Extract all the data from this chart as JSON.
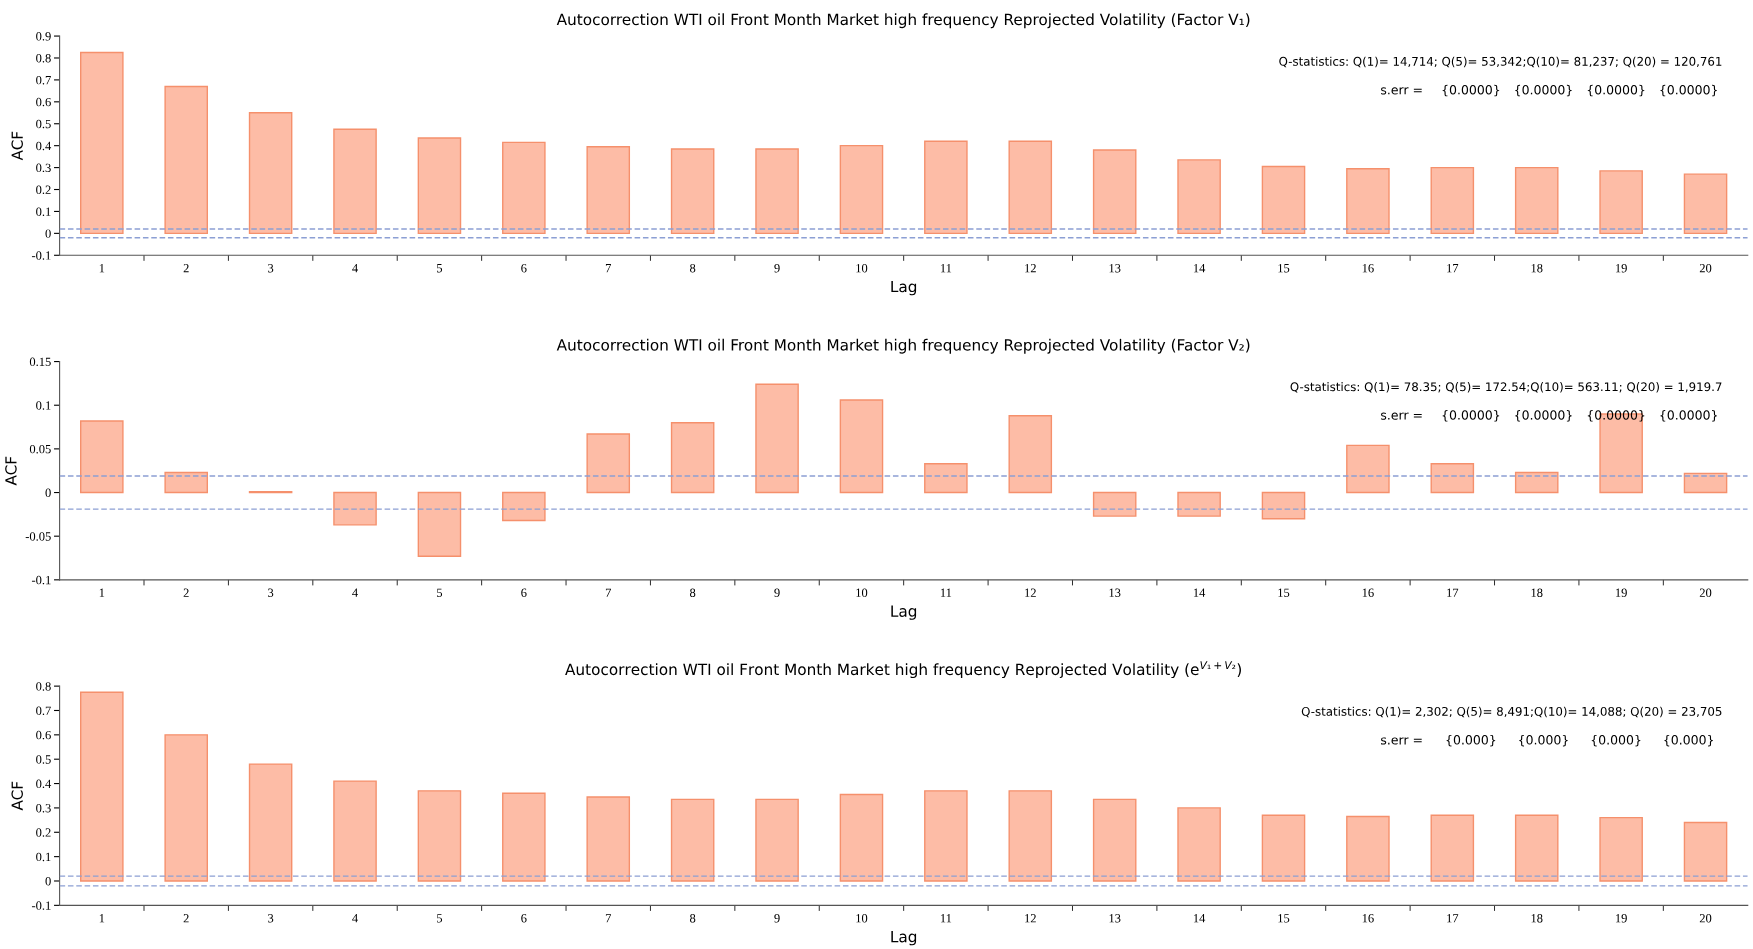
{
  "chart_data": [
    {
      "type": "bar",
      "title": "Autocorrection WTI oil Front Month Market high frequency Reprojected Volatility (Factor V₁)",
      "xlabel": "Lag",
      "ylabel": "ACF",
      "color": "#fdbca6",
      "categories": [
        "1",
        "2",
        "3",
        "4",
        "5",
        "6",
        "7",
        "8",
        "9",
        "10",
        "11",
        "12",
        "13",
        "14",
        "15",
        "16",
        "17",
        "18",
        "19",
        "20"
      ],
      "values": [
        0.825,
        0.67,
        0.55,
        0.475,
        0.435,
        0.415,
        0.395,
        0.385,
        0.385,
        0.4,
        0.42,
        0.42,
        0.38,
        0.335,
        0.305,
        0.295,
        0.3,
        0.3,
        0.285,
        0.27
      ],
      "ylim": [
        -0.1,
        0.9
      ],
      "yticks": [
        -0.1,
        0,
        0.1,
        0.2,
        0.3,
        0.4,
        0.5,
        0.6,
        0.7,
        0.8,
        0.9
      ],
      "grid": false,
      "legend": false,
      "ref_lines": [
        {
          "axis": "y",
          "value": 0.02,
          "color": "#8c9fd4",
          "line_style": "dashed"
        },
        {
          "axis": "y",
          "value": -0.02,
          "color": "#8c9fd4",
          "line_style": "dashed"
        }
      ],
      "annotations": [
        "Q-statistics: Q(1)= 14,714; Q(5)= 53,342;Q(10)= 81,237; Q(20) = 120,761",
        "s.err =",
        "{0.0000}",
        "{0.0000}",
        "{0.0000}",
        "{0.0000}"
      ]
    },
    {
      "type": "bar",
      "title": "Autocorrection WTI oil Front Month Market high frequency Reprojected Volatility (Factor V₂)",
      "xlabel": "Lag",
      "ylabel": "ACF",
      "color": "#fdbca6",
      "categories": [
        "1",
        "2",
        "3",
        "4",
        "5",
        "6",
        "7",
        "8",
        "9",
        "10",
        "11",
        "12",
        "13",
        "14",
        "15",
        "16",
        "17",
        "18",
        "19",
        "20"
      ],
      "values": [
        0.082,
        0.023,
        0.001,
        -0.037,
        -0.073,
        -0.032,
        0.067,
        0.08,
        0.124,
        0.106,
        0.033,
        0.088,
        -0.027,
        -0.027,
        -0.03,
        0.054,
        0.033,
        0.023,
        0.09,
        0.022
      ],
      "ylim": [
        -0.1,
        0.15
      ],
      "yticks": [
        -0.1,
        -0.05,
        0,
        0.05,
        0.1,
        0.15
      ],
      "grid": false,
      "legend": false,
      "ref_lines": [
        {
          "axis": "y",
          "value": 0.019,
          "color": "#8c9fd4",
          "line_style": "dashed"
        },
        {
          "axis": "y",
          "value": -0.019,
          "color": "#8c9fd4",
          "line_style": "dashed"
        }
      ],
      "annotations": [
        "Q-statistics: Q(1)= 78.35; Q(5)= 172.54;Q(10)= 563.11; Q(20) = 1,919.7",
        "s.err =",
        "{0.0000}",
        "{0.0000}",
        "{0.0000}",
        "{0.0000}"
      ]
    },
    {
      "type": "bar",
      "title": "Autocorrection WTI oil Front Month Market high frequency Reprojected Volatility (e$^{V₁+V₂}$)",
      "xlabel": "Lag",
      "ylabel": "ACF",
      "color": "#fdbca6",
      "categories": [
        "1",
        "2",
        "3",
        "4",
        "5",
        "6",
        "7",
        "8",
        "9",
        "10",
        "11",
        "12",
        "13",
        "14",
        "15",
        "16",
        "17",
        "18",
        "19",
        "20"
      ],
      "values": [
        0.775,
        0.6,
        0.48,
        0.41,
        0.37,
        0.36,
        0.345,
        0.335,
        0.335,
        0.355,
        0.37,
        0.37,
        0.335,
        0.3,
        0.27,
        0.265,
        0.27,
        0.27,
        0.26,
        0.24
      ],
      "ylim": [
        -0.1,
        0.8
      ],
      "yticks": [
        -0.1,
        0,
        0.1,
        0.2,
        0.3,
        0.4,
        0.5,
        0.6,
        0.7,
        0.8
      ],
      "grid": false,
      "legend": false,
      "ref_lines": [
        {
          "axis": "y",
          "value": 0.02,
          "color": "#8c9fd4",
          "line_style": "dashed"
        },
        {
          "axis": "y",
          "value": -0.02,
          "color": "#8c9fd4",
          "line_style": "dashed"
        }
      ],
      "annotations": [
        "Q-statistics: Q(1)= 2,302; Q(5)= 8,491;Q(10)= 14,088; Q(20) = 23,705",
        "s.err =",
        "{0.000}",
        "{0.000}",
        "{0.000}",
        "{0.000}"
      ]
    }
  ]
}
